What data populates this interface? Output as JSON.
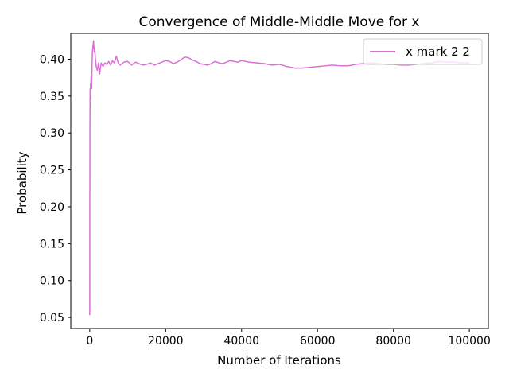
{
  "chart_data": {
    "type": "line",
    "title": "Convergence of Middle-Middle Move for x",
    "xlabel": "Number of Iterations",
    "ylabel": "Probability",
    "xlim": [
      -5000,
      105000
    ],
    "ylim": [
      0.035,
      0.435
    ],
    "x_ticks": [
      0,
      20000,
      40000,
      60000,
      80000,
      100000
    ],
    "y_ticks": [
      0.05,
      0.1,
      0.15,
      0.2,
      0.25,
      0.3,
      0.35,
      0.4
    ],
    "x_tick_labels": [
      "0",
      "20000",
      "40000",
      "60000",
      "80000",
      "100000"
    ],
    "y_tick_labels": [
      "0.05",
      "0.10",
      "0.15",
      "0.20",
      "0.25",
      "0.30",
      "0.35",
      "0.40"
    ],
    "grid": false,
    "legend_position": "top-right",
    "series": [
      {
        "name": "x mark 2 2",
        "color": "#da70d6",
        "x": [
          1,
          20,
          50,
          100,
          150,
          200,
          300,
          400,
          500,
          600,
          700,
          800,
          900,
          1000,
          1100,
          1200,
          1300,
          1500,
          1700,
          2000,
          2300,
          2600,
          3000,
          3500,
          4000,
          4500,
          5000,
          5500,
          6000,
          6500,
          7000,
          7500,
          8000,
          9000,
          10000,
          11000,
          12000,
          13000,
          14000,
          15000,
          16000,
          17000,
          18000,
          19000,
          20000,
          21000,
          22000,
          23000,
          24000,
          25000,
          26000,
          27000,
          28000,
          29000,
          30000,
          31000,
          32000,
          33000,
          34000,
          35000,
          36000,
          37000,
          38000,
          39000,
          40000,
          42000,
          44000,
          46000,
          48000,
          50000,
          52000,
          54000,
          56000,
          58000,
          60000,
          62000,
          64000,
          66000,
          68000,
          70000,
          72000,
          74000,
          76000,
          78000,
          80000,
          82000,
          84000,
          86000,
          88000,
          90000,
          92000,
          94000,
          96000,
          98000,
          100000
        ],
        "y": [
          0.053,
          0.21,
          0.31,
          0.36,
          0.345,
          0.365,
          0.37,
          0.378,
          0.36,
          0.39,
          0.41,
          0.415,
          0.42,
          0.425,
          0.418,
          0.41,
          0.415,
          0.4,
          0.39,
          0.385,
          0.395,
          0.38,
          0.395,
          0.39,
          0.395,
          0.393,
          0.397,
          0.392,
          0.398,
          0.395,
          0.404,
          0.395,
          0.392,
          0.396,
          0.397,
          0.392,
          0.396,
          0.394,
          0.392,
          0.393,
          0.395,
          0.392,
          0.394,
          0.396,
          0.398,
          0.397,
          0.394,
          0.396,
          0.399,
          0.403,
          0.402,
          0.399,
          0.397,
          0.394,
          0.393,
          0.392,
          0.394,
          0.397,
          0.395,
          0.394,
          0.396,
          0.398,
          0.397,
          0.396,
          0.398,
          0.396,
          0.395,
          0.394,
          0.392,
          0.393,
          0.39,
          0.388,
          0.388,
          0.389,
          0.39,
          0.391,
          0.392,
          0.391,
          0.391,
          0.393,
          0.394,
          0.395,
          0.394,
          0.393,
          0.393,
          0.392,
          0.392,
          0.393,
          0.394,
          0.395,
          0.397,
          0.396,
          0.396,
          0.395,
          0.395
        ]
      }
    ]
  }
}
